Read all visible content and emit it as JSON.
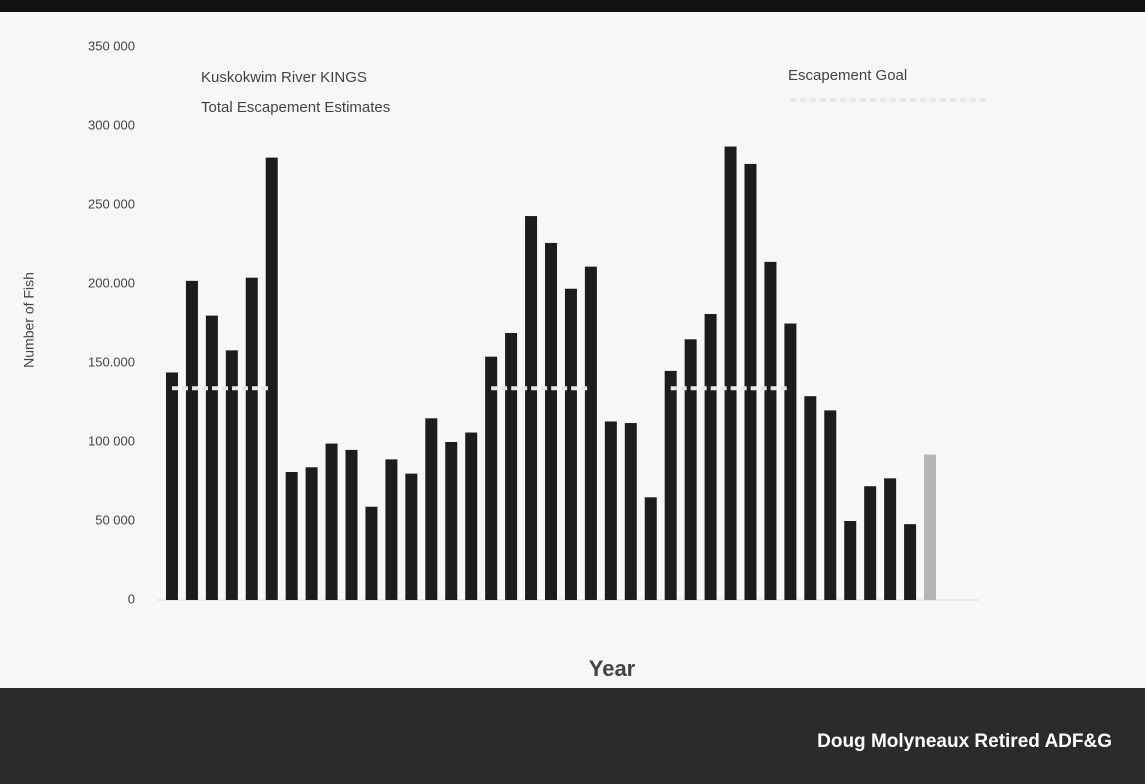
{
  "chart_data": {
    "type": "bar",
    "title": "Kuskokwim River KINGS",
    "subtitle": "Total Escapement Estimates",
    "y_label": "Number of Fish",
    "x_label": "Year",
    "categories": [
      null,
      null,
      null,
      null,
      null,
      null,
      null,
      null,
      null,
      null,
      null,
      null,
      null,
      null,
      null,
      null,
      null,
      null,
      null,
      null,
      null,
      null,
      null,
      null,
      null,
      null,
      null,
      null,
      null,
      null,
      null,
      null,
      null,
      null,
      null,
      null,
      null,
      null,
      null
    ],
    "series": [
      {
        "name": "Total Escapement",
        "type": "bar",
        "color": "#1c1c1c",
        "colors": [
          "#1c1c1c",
          "#1c1c1c",
          "#1c1c1c",
          "#1c1c1c",
          "#1c1c1c",
          "#1c1c1c",
          "#1c1c1c",
          "#1c1c1c",
          "#1c1c1c",
          "#1c1c1c",
          "#1c1c1c",
          "#1c1c1c",
          "#1c1c1c",
          "#1c1c1c",
          "#1c1c1c",
          "#1c1c1c",
          "#1c1c1c",
          "#1c1c1c",
          "#1c1c1c",
          "#1c1c1c",
          "#1c1c1c",
          "#1c1c1c",
          "#1c1c1c",
          "#1c1c1c",
          "#1c1c1c",
          "#1c1c1c",
          "#1c1c1c",
          "#1c1c1c",
          "#1c1c1c",
          "#1c1c1c",
          "#1c1c1c",
          "#1c1c1c",
          "#1c1c1c",
          "#1c1c1c",
          "#1c1c1c",
          "#1c1c1c",
          "#1c1c1c",
          "#1c1c1c",
          "#b5b5b5"
        ],
        "values": [
          144000,
          202000,
          180000,
          158000,
          204000,
          280000,
          81000,
          84000,
          99000,
          95000,
          59000,
          89000,
          80000,
          115000,
          100000,
          106000,
          154000,
          169000,
          243000,
          226000,
          197000,
          211000,
          113000,
          112000,
          65000,
          145000,
          165000,
          181000,
          287000,
          276000,
          214000,
          175000,
          129000,
          120000,
          50000,
          72000,
          77000,
          48000,
          92000
        ]
      },
      {
        "name": "Escapement Goal",
        "type": "line",
        "color": "#e6e6e6",
        "values": [
          134000,
          134000,
          134000,
          134000,
          134000,
          134000,
          null,
          null,
          null,
          null,
          null,
          null,
          null,
          null,
          null,
          null,
          134000,
          134000,
          134000,
          134000,
          134000,
          134000,
          null,
          null,
          null,
          134000,
          134000,
          134000,
          134000,
          134000,
          134000,
          134000,
          null,
          null,
          null,
          null,
          null,
          null,
          null
        ]
      }
    ],
    "ylim": [
      0,
      350000
    ],
    "yticks": [
      {
        "value": 0,
        "label": "0"
      },
      {
        "value": 50000,
        "label": "50 000"
      },
      {
        "value": 100000,
        "label": "100 000"
      },
      {
        "value": 150000,
        "label": "150.000"
      },
      {
        "value": 200000,
        "label": "200.000"
      },
      {
        "value": 250000,
        "label": "250 000"
      },
      {
        "value": 300000,
        "label": "300 000"
      },
      {
        "value": 350000,
        "label": "350 000"
      }
    ],
    "grid": false
  },
  "footer": {
    "text": "Doug Molyneaux Retired ADF&G"
  }
}
